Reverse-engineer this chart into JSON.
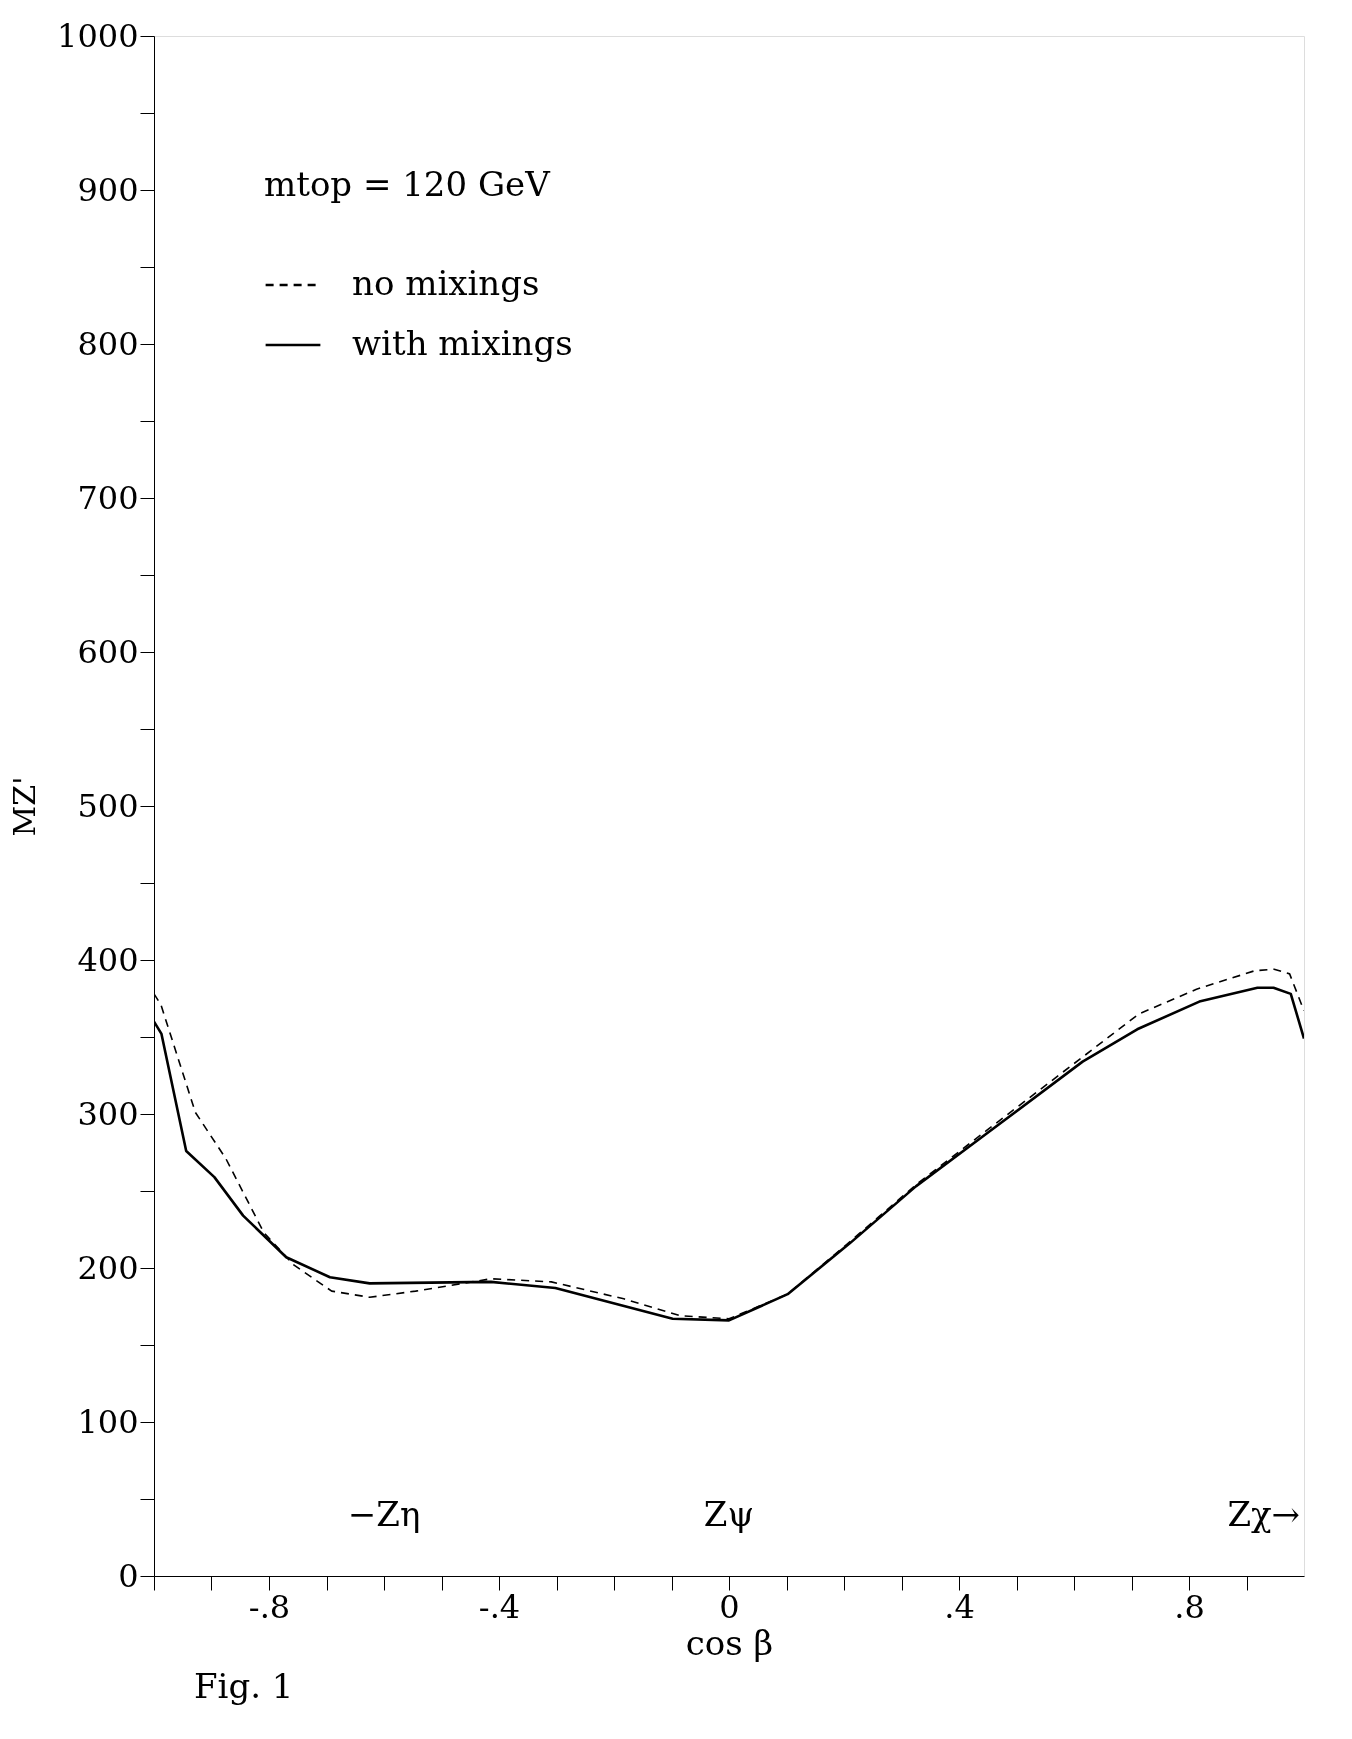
{
  "chart_data": {
    "type": "line",
    "xlabel": "cos β",
    "ylabel": "MZ'",
    "xlim": [
      -1,
      1
    ],
    "ylim": [
      0,
      1000
    ],
    "xticks": [
      {
        "value": -1,
        "label": null
      },
      {
        "value": -0.9,
        "label": null
      },
      {
        "value": -0.8,
        "label": "-.8"
      },
      {
        "value": -0.7,
        "label": null
      },
      {
        "value": -0.6,
        "label": null
      },
      {
        "value": -0.5,
        "label": null
      },
      {
        "value": -0.4,
        "label": "-.4"
      },
      {
        "value": -0.3,
        "label": null
      },
      {
        "value": -0.2,
        "label": null
      },
      {
        "value": -0.1,
        "label": null
      },
      0,
      {
        "value": 0.1,
        "label": null
      },
      {
        "value": 0.2,
        "label": null
      },
      {
        "value": 0.3,
        "label": null
      },
      {
        "value": 0.4,
        "label": ".4"
      },
      {
        "value": 0.5,
        "label": null
      },
      {
        "value": 0.6,
        "label": null
      },
      {
        "value": 0.7,
        "label": null
      },
      {
        "value": 0.8,
        "label": ".8"
      },
      {
        "value": 0.9,
        "label": null
      }
    ],
    "yticks": [
      0,
      {
        "value": 50,
        "label": null
      },
      100,
      {
        "value": 150,
        "label": null
      },
      200,
      {
        "value": 250,
        "label": null
      },
      300,
      {
        "value": 350,
        "label": null
      },
      400,
      {
        "value": 450,
        "label": null
      },
      500,
      {
        "value": 550,
        "label": null
      },
      600,
      {
        "value": 650,
        "label": null
      },
      700,
      {
        "value": 750,
        "label": null
      },
      800,
      {
        "value": 850,
        "label": null
      },
      900,
      {
        "value": 950,
        "label": null
      },
      1000
    ],
    "grid": false,
    "legend": "top left",
    "series": [
      {
        "name": "no mixings",
        "color": "#000000",
        "line_style": "dashed",
        "x": [
          -1,
          -0.988,
          -0.928,
          -0.875,
          -0.809,
          -0.757,
          -0.691,
          -0.625,
          -0.545,
          -0.414,
          -0.309,
          -0.183,
          -0.085,
          0,
          0.102,
          0.21,
          0.325,
          0.447,
          0.58,
          0.713,
          0.813,
          0.914,
          0.948,
          0.975,
          1
        ],
        "values": [
          378,
          371,
          301,
          271,
          223,
          202,
          185,
          181,
          185,
          193,
          191,
          180,
          169,
          167,
          183,
          217,
          254,
          289,
          327,
          365,
          381,
          393,
          394,
          391,
          367
        ]
      },
      {
        "name": "with mixings",
        "color": "#000000",
        "line_style": "solid",
        "x": [
          -1,
          -0.987,
          -0.944,
          -0.895,
          -0.845,
          -0.77,
          -0.694,
          -0.625,
          -0.414,
          -0.302,
          -0.098,
          0,
          0.102,
          0.21,
          0.325,
          0.447,
          0.615,
          0.71,
          0.818,
          0.919,
          0.947,
          0.977,
          1
        ],
        "values": [
          360,
          352,
          276,
          259,
          234,
          207,
          194,
          190,
          191,
          187,
          167,
          166,
          183,
          216,
          253,
          287,
          334,
          355,
          373,
          382,
          382,
          378,
          349
        ]
      }
    ],
    "annotations": [
      "mtop = 120 GeV",
      "−Zη",
      "Zψ",
      "Zχ→",
      "Fig. 1"
    ]
  }
}
